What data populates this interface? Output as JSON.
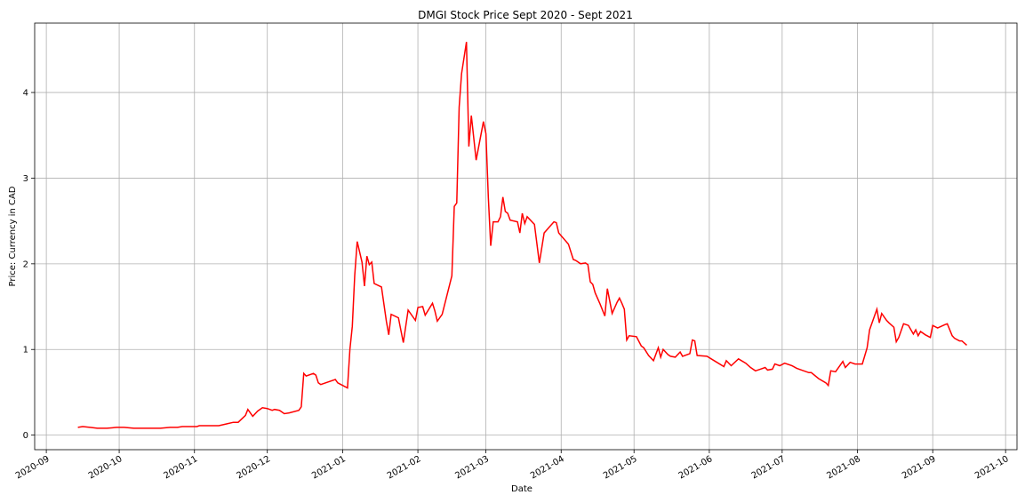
{
  "chart_data": {
    "type": "line",
    "title": "DMGI Stock Price Sept 2020 - Sept 2021",
    "x_label": "Date",
    "y_label": "Price: Currency in CAD",
    "grid": true,
    "xlim": [
      -4.8,
      399.7
    ],
    "ylim": [
      -0.17,
      4.81
    ],
    "xticks": [
      {
        "value": 0,
        "label": "2020-09"
      },
      {
        "value": 30,
        "label": "2020-10"
      },
      {
        "value": 61,
        "label": "2020-11"
      },
      {
        "value": 91,
        "label": "2020-12"
      },
      {
        "value": 122,
        "label": "2021-01"
      },
      {
        "value": 153,
        "label": "2021-02"
      },
      {
        "value": 181,
        "label": "2021-03"
      },
      {
        "value": 212,
        "label": "2021-04"
      },
      {
        "value": 242,
        "label": "2021-05"
      },
      {
        "value": 273,
        "label": "2021-06"
      },
      {
        "value": 303,
        "label": "2021-07"
      },
      {
        "value": 334,
        "label": "2021-08"
      },
      {
        "value": 365,
        "label": "2021-09"
      },
      {
        "value": 395,
        "label": "2021-10"
      }
    ],
    "yticks": [
      0,
      1,
      2,
      3,
      4
    ],
    "x": [
      13,
      15,
      18,
      21,
      25,
      29,
      32,
      36,
      40,
      43,
      47,
      51,
      54,
      56,
      58,
      62,
      63,
      65,
      71,
      74,
      77,
      79,
      82,
      83,
      85,
      87,
      89,
      91,
      93,
      94,
      96,
      98,
      100,
      104,
      105,
      106,
      107,
      110,
      111,
      112,
      113,
      119,
      120,
      124,
      125,
      126,
      127,
      128,
      130,
      131,
      132,
      133,
      134,
      135,
      138,
      140,
      141,
      142,
      145,
      146,
      147,
      149,
      152,
      153,
      155,
      156,
      159,
      160,
      161,
      163,
      167,
      168,
      169,
      170,
      171,
      173,
      174,
      175,
      177,
      180,
      181,
      182,
      183,
      184,
      186,
      187,
      188,
      189,
      190,
      191,
      194,
      195,
      196,
      197,
      198,
      201,
      203,
      205,
      209,
      210,
      211,
      215,
      217,
      218,
      220,
      222,
      223,
      224,
      225,
      226,
      228,
      230,
      231,
      233,
      235,
      236,
      237,
      238,
      239,
      240,
      243,
      245,
      246,
      248,
      250,
      252,
      253,
      254,
      256,
      257,
      259,
      261,
      262,
      265,
      266,
      267,
      268,
      272,
      275,
      279,
      280,
      282,
      285,
      288,
      290,
      292,
      294,
      296,
      297,
      299,
      300,
      302,
      304,
      307,
      309,
      311,
      314,
      315,
      318,
      321,
      322,
      323,
      325,
      328,
      329,
      331,
      333,
      336,
      338,
      339,
      342,
      343,
      344,
      346,
      347,
      349,
      350,
      351,
      353,
      355,
      357,
      358,
      359,
      360,
      362,
      364,
      365,
      367,
      370,
      371,
      373,
      374,
      376,
      377,
      379
    ],
    "series": [
      {
        "name": "DMGI",
        "color": "#ff0000",
        "values": [
          0.09,
          0.1,
          0.09,
          0.08,
          0.08,
          0.09,
          0.09,
          0.08,
          0.08,
          0.08,
          0.08,
          0.09,
          0.09,
          0.1,
          0.1,
          0.1,
          0.11,
          0.11,
          0.11,
          0.13,
          0.15,
          0.15,
          0.23,
          0.3,
          0.22,
          0.28,
          0.32,
          0.31,
          0.29,
          0.3,
          0.29,
          0.25,
          0.26,
          0.29,
          0.33,
          0.72,
          0.69,
          0.72,
          0.7,
          0.61,
          0.59,
          0.65,
          0.61,
          0.55,
          1.0,
          1.27,
          1.86,
          2.26,
          2.02,
          1.74,
          2.09,
          1.99,
          2.02,
          1.77,
          1.73,
          1.33,
          1.17,
          1.41,
          1.37,
          1.22,
          1.08,
          1.46,
          1.34,
          1.49,
          1.5,
          1.4,
          1.54,
          1.45,
          1.33,
          1.41,
          1.86,
          2.67,
          2.71,
          3.83,
          4.22,
          4.59,
          3.37,
          3.73,
          3.21,
          3.66,
          3.52,
          2.78,
          2.21,
          2.49,
          2.49,
          2.55,
          2.78,
          2.61,
          2.59,
          2.51,
          2.49,
          2.36,
          2.59,
          2.47,
          2.55,
          2.46,
          2.01,
          2.36,
          2.49,
          2.48,
          2.36,
          2.23,
          2.05,
          2.04,
          2.0,
          2.01,
          1.99,
          1.79,
          1.76,
          1.66,
          1.53,
          1.39,
          1.71,
          1.42,
          1.55,
          1.6,
          1.54,
          1.47,
          1.11,
          1.16,
          1.15,
          1.04,
          1.02,
          0.93,
          0.87,
          1.02,
          0.91,
          1.0,
          0.94,
          0.92,
          0.91,
          0.97,
          0.92,
          0.95,
          1.11,
          1.1,
          0.93,
          0.92,
          0.87,
          0.8,
          0.87,
          0.81,
          0.89,
          0.84,
          0.79,
          0.75,
          0.77,
          0.79,
          0.76,
          0.77,
          0.83,
          0.81,
          0.84,
          0.81,
          0.78,
          0.76,
          0.73,
          0.73,
          0.66,
          0.61,
          0.58,
          0.75,
          0.74,
          0.86,
          0.79,
          0.85,
          0.83,
          0.83,
          1.02,
          1.23,
          1.47,
          1.31,
          1.42,
          1.34,
          1.31,
          1.26,
          1.09,
          1.14,
          1.3,
          1.28,
          1.18,
          1.23,
          1.16,
          1.21,
          1.17,
          1.14,
          1.28,
          1.25,
          1.29,
          1.3,
          1.16,
          1.13,
          1.1,
          1.1,
          1.05
        ]
      }
    ]
  }
}
